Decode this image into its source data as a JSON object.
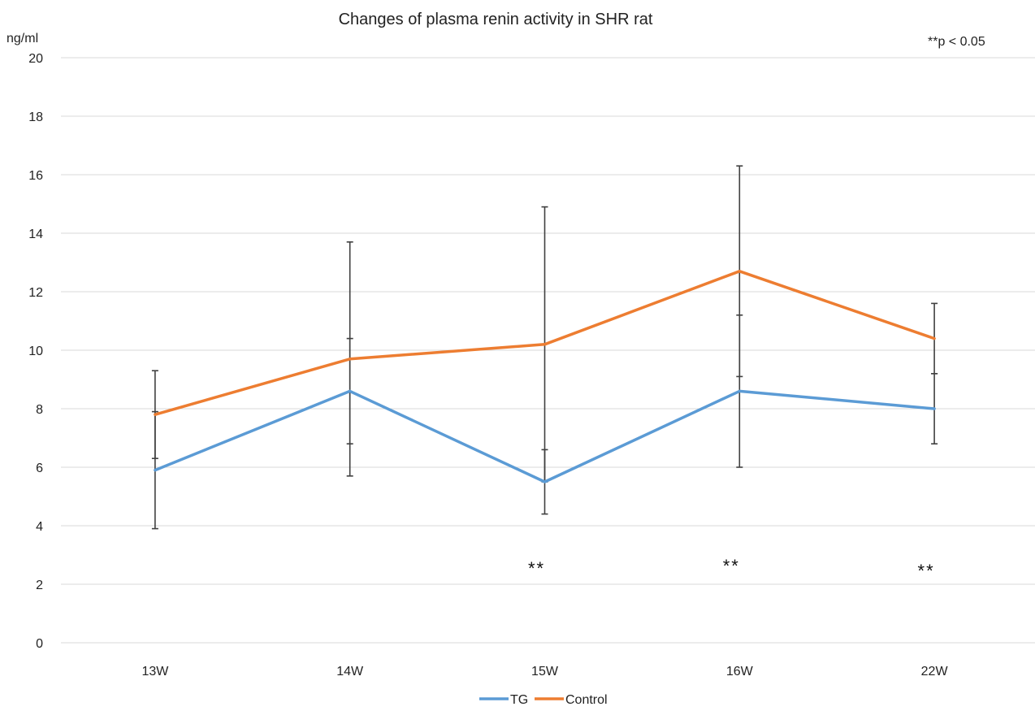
{
  "chart_data": {
    "type": "line",
    "title": "Changes of plasma renin activity in SHR rat",
    "y_unit": "ng/ml",
    "note": "**p < 0.05",
    "categories": [
      "13W",
      "14W",
      "15W",
      "16W",
      "22W"
    ],
    "ylim": [
      0,
      20
    ],
    "yticks": [
      0,
      2,
      4,
      6,
      8,
      10,
      12,
      14,
      16,
      18,
      20
    ],
    "grid": true,
    "legend_position": "bottom",
    "series": [
      {
        "name": "TG",
        "color": "#5B9BD5",
        "values": [
          5.9,
          8.6,
          5.5,
          8.6,
          8.0
        ],
        "error": [
          2.0,
          1.8,
          1.1,
          2.6,
          1.2
        ]
      },
      {
        "name": "Control",
        "color": "#ED7D31",
        "values": [
          7.8,
          9.7,
          10.2,
          12.7,
          10.4
        ],
        "error": [
          1.5,
          4.0,
          4.7,
          3.6,
          1.2
        ]
      }
    ],
    "significance": [
      {
        "category": "15W",
        "label": "**"
      },
      {
        "category": "16W",
        "label": "**"
      },
      {
        "category": "22W",
        "label": "**"
      }
    ],
    "error_bar_color": "#404040",
    "grid_color": "#D9D9D9"
  }
}
